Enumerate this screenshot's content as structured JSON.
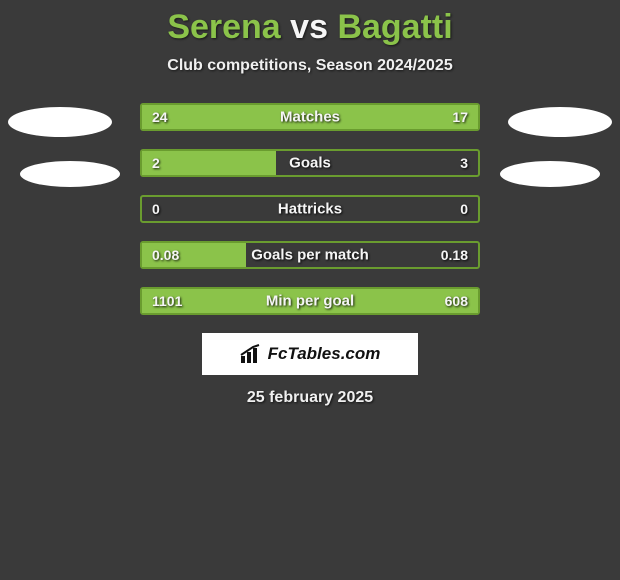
{
  "background_color": "#3a3a3a",
  "accent_color": "#8bc34a",
  "border_color": "#6a9c2f",
  "text_color": "#f5f5f5",
  "title": {
    "player1": "Serena",
    "vs": "vs",
    "player2": "Bagatti"
  },
  "subtitle": "Club competitions, Season 2024/2025",
  "rows": [
    {
      "label": "Matches",
      "left": "24",
      "right": "17",
      "fill_left_pct": 100,
      "fill_right_pct": 0
    },
    {
      "label": "Goals",
      "left": "2",
      "right": "3",
      "fill_left_pct": 40,
      "fill_right_pct": 60
    },
    {
      "label": "Hattricks",
      "left": "0",
      "right": "0",
      "fill_left_pct": 0,
      "fill_right_pct": 0
    },
    {
      "label": "Goals per match",
      "left": "0.08",
      "right": "0.18",
      "fill_left_pct": 31,
      "fill_right_pct": 69
    },
    {
      "label": "Min per goal",
      "left": "1101",
      "right": "608",
      "fill_left_pct": 100,
      "fill_right_pct": 0
    }
  ],
  "brand": "FcTables.com",
  "date": "25 february 2025"
}
